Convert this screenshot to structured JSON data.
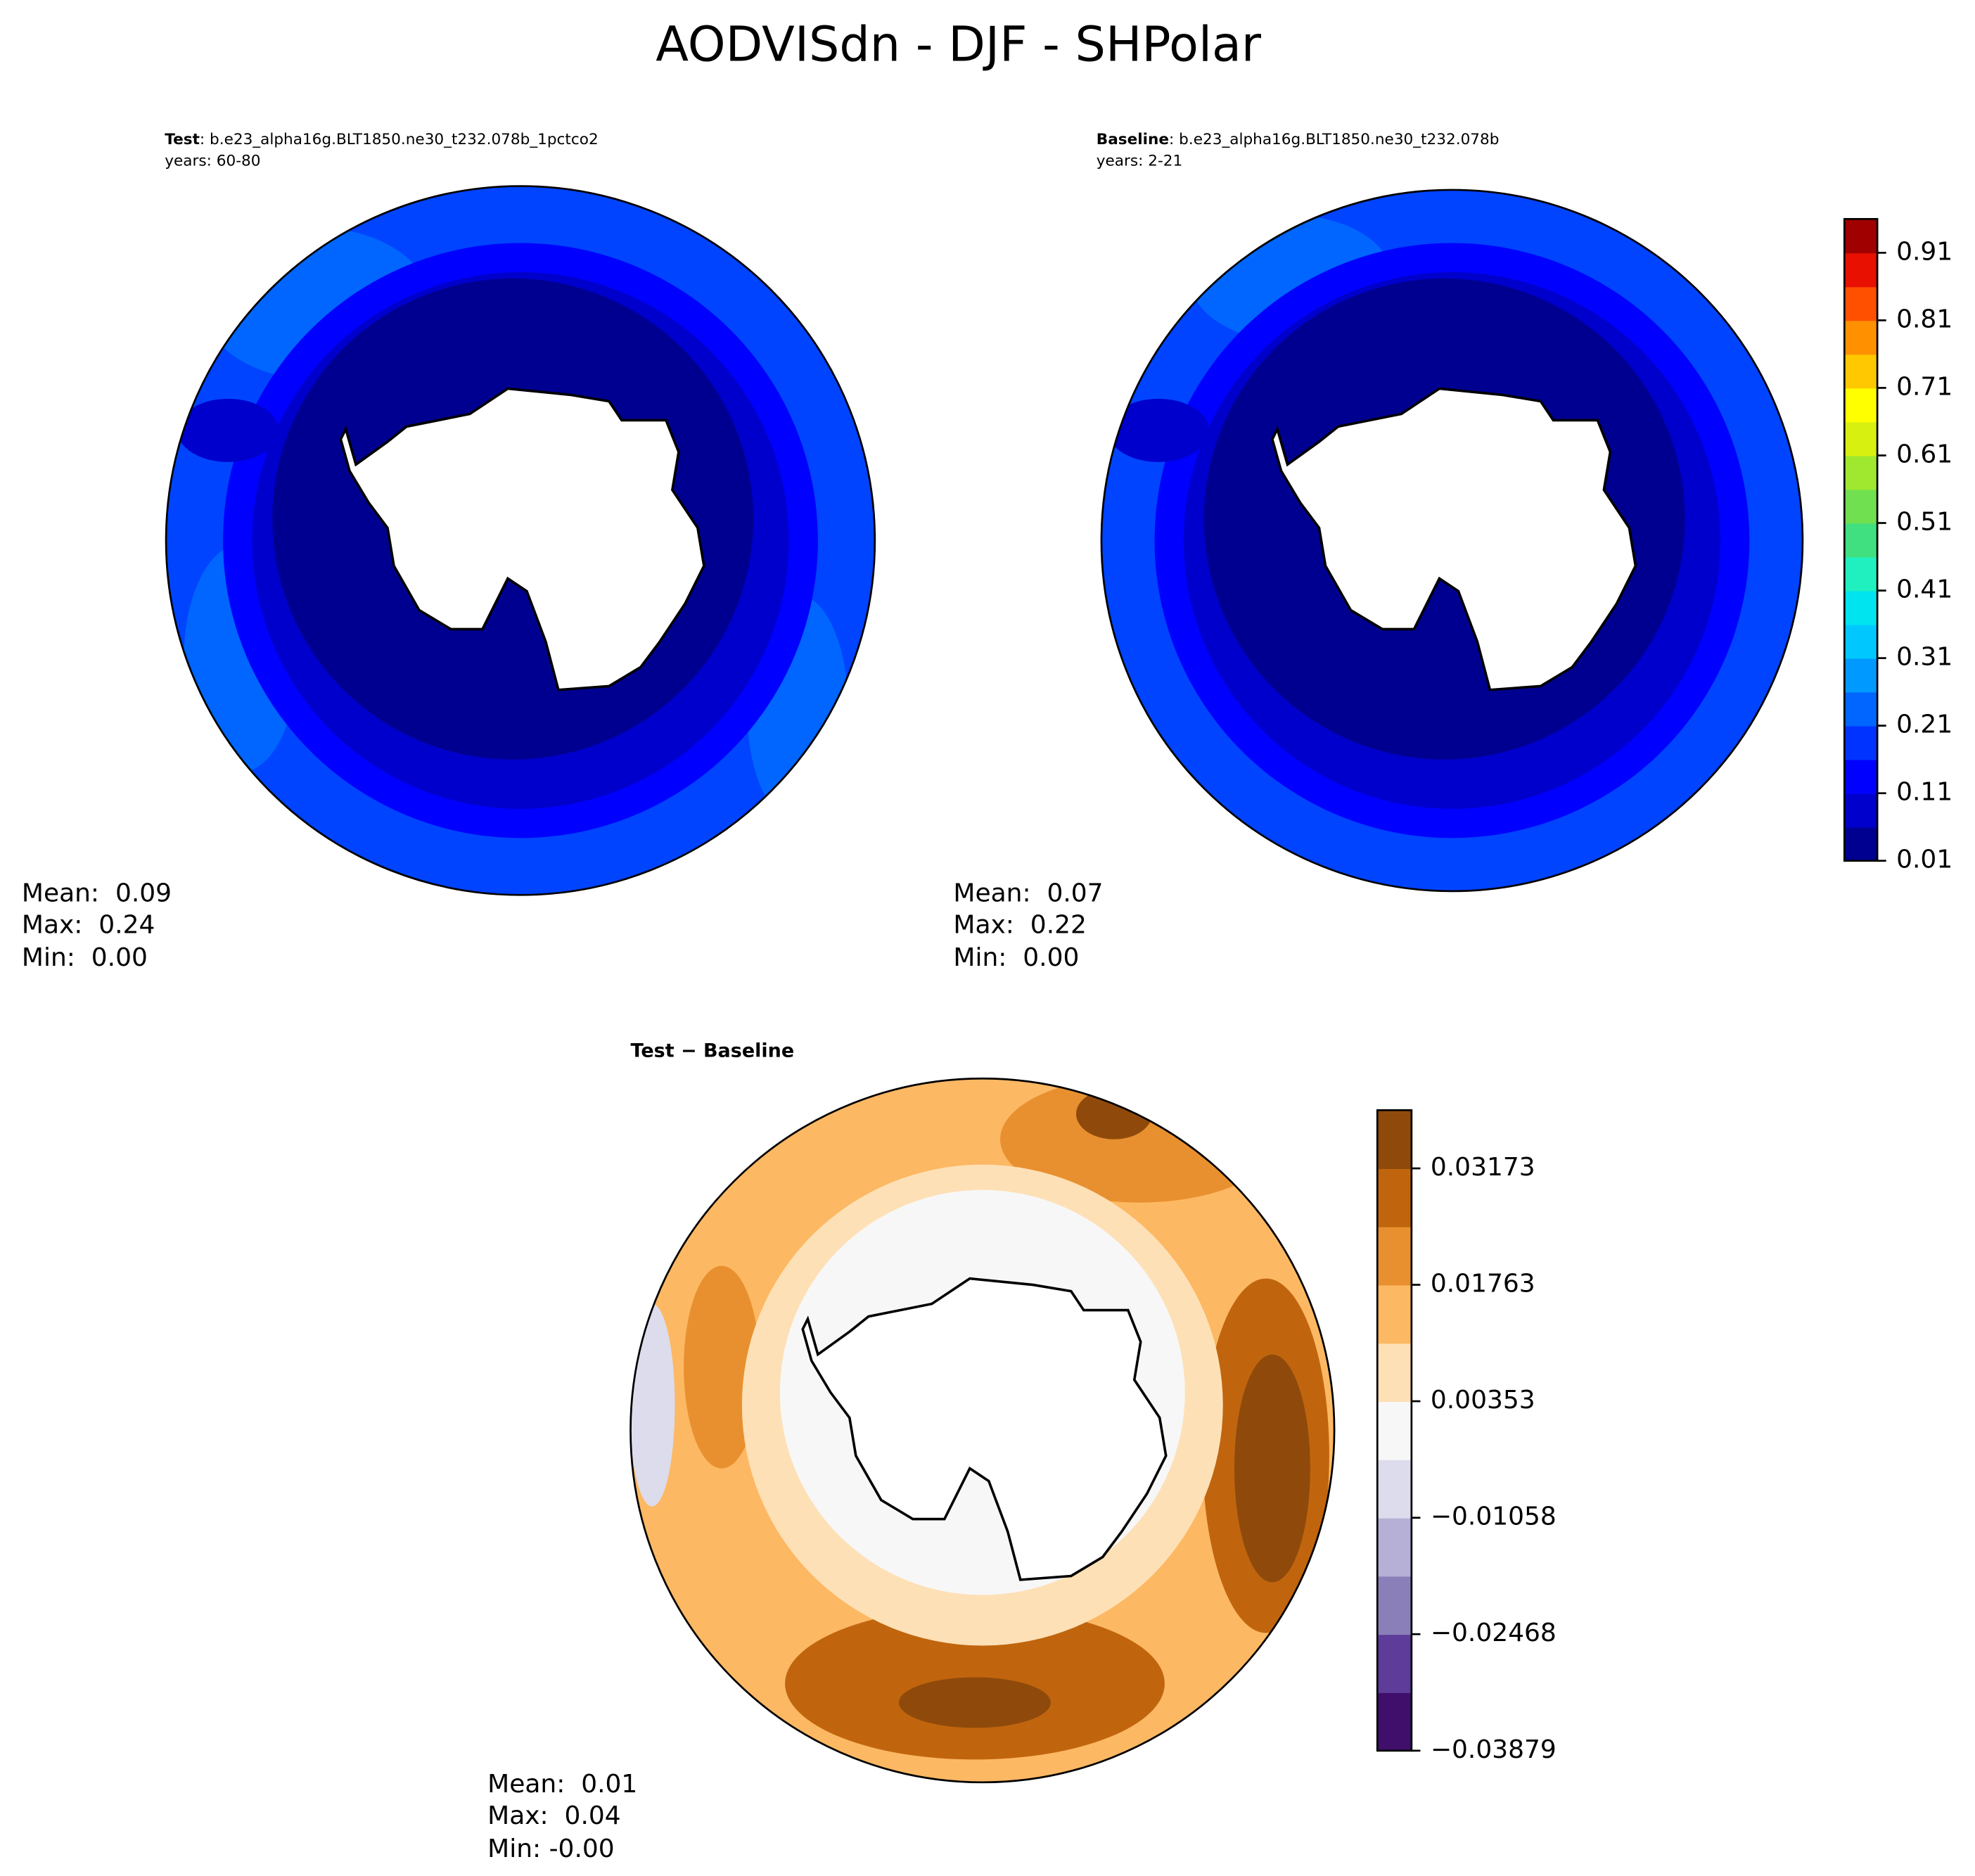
{
  "title": "AODVISdn - DJF - SHPolar",
  "panels": [
    {
      "label": "Test",
      "case": ": b.e23_alpha16g.BLT1850.ne30_t232.078b_1pctco2",
      "years": "years: 60-80",
      "stats": [
        "Mean:  0.09",
        "Max:  0.24",
        "Min:  0.00"
      ]
    },
    {
      "label": "Baseline",
      "case": ": b.e23_alpha16g.BLT1850.ne30_t232.078b",
      "years": "years: 2-21",
      "stats": [
        "Mean:  0.07",
        "Max:  0.22",
        "Min:  0.00"
      ]
    },
    {
      "label": "Test − Baseline",
      "stats": [
        "Mean:  0.01",
        "Max:  0.04",
        "Min: -0.00"
      ]
    }
  ],
  "colorbars": [
    {
      "clim": [
        0.01,
        0.96
      ],
      "ticks": [
        0.01,
        0.11,
        0.21,
        0.31,
        0.41,
        0.51,
        0.61,
        0.71,
        0.81,
        0.91
      ],
      "colors": [
        "#000090",
        "#0000cc",
        "#0000ff",
        "#0033ff",
        "#0066ff",
        "#0099ff",
        "#00c8ff",
        "#00e4f0",
        "#20f0c0",
        "#40e080",
        "#70e050",
        "#a0e830",
        "#d8f010",
        "#ffff00",
        "#ffc800",
        "#ff9000",
        "#ff5000",
        "#e81000",
        "#a00000"
      ]
    },
    {
      "clim": [
        -0.03879,
        0.03878
      ],
      "ticks": [
        {
          "value": -0.03879,
          "label": "−0.03879"
        },
        {
          "value": -0.02468,
          "label": "−0.02468"
        },
        {
          "value": -0.01058,
          "label": "−0.01058"
        },
        {
          "value": 0.00353,
          "label": "0.00353"
        },
        {
          "value": 0.01763,
          "label": "0.01763"
        },
        {
          "value": 0.03173,
          "label": "0.03173"
        }
      ],
      "colors": [
        "#3f0f6b",
        "#5e3c99",
        "#8a7fb8",
        "#b6b0d6",
        "#dcdcec",
        "#f7f7f7",
        "#fee0b6",
        "#fdb863",
        "#e8902f",
        "#c0650e",
        "#8f4a0b"
      ]
    }
  ]
}
